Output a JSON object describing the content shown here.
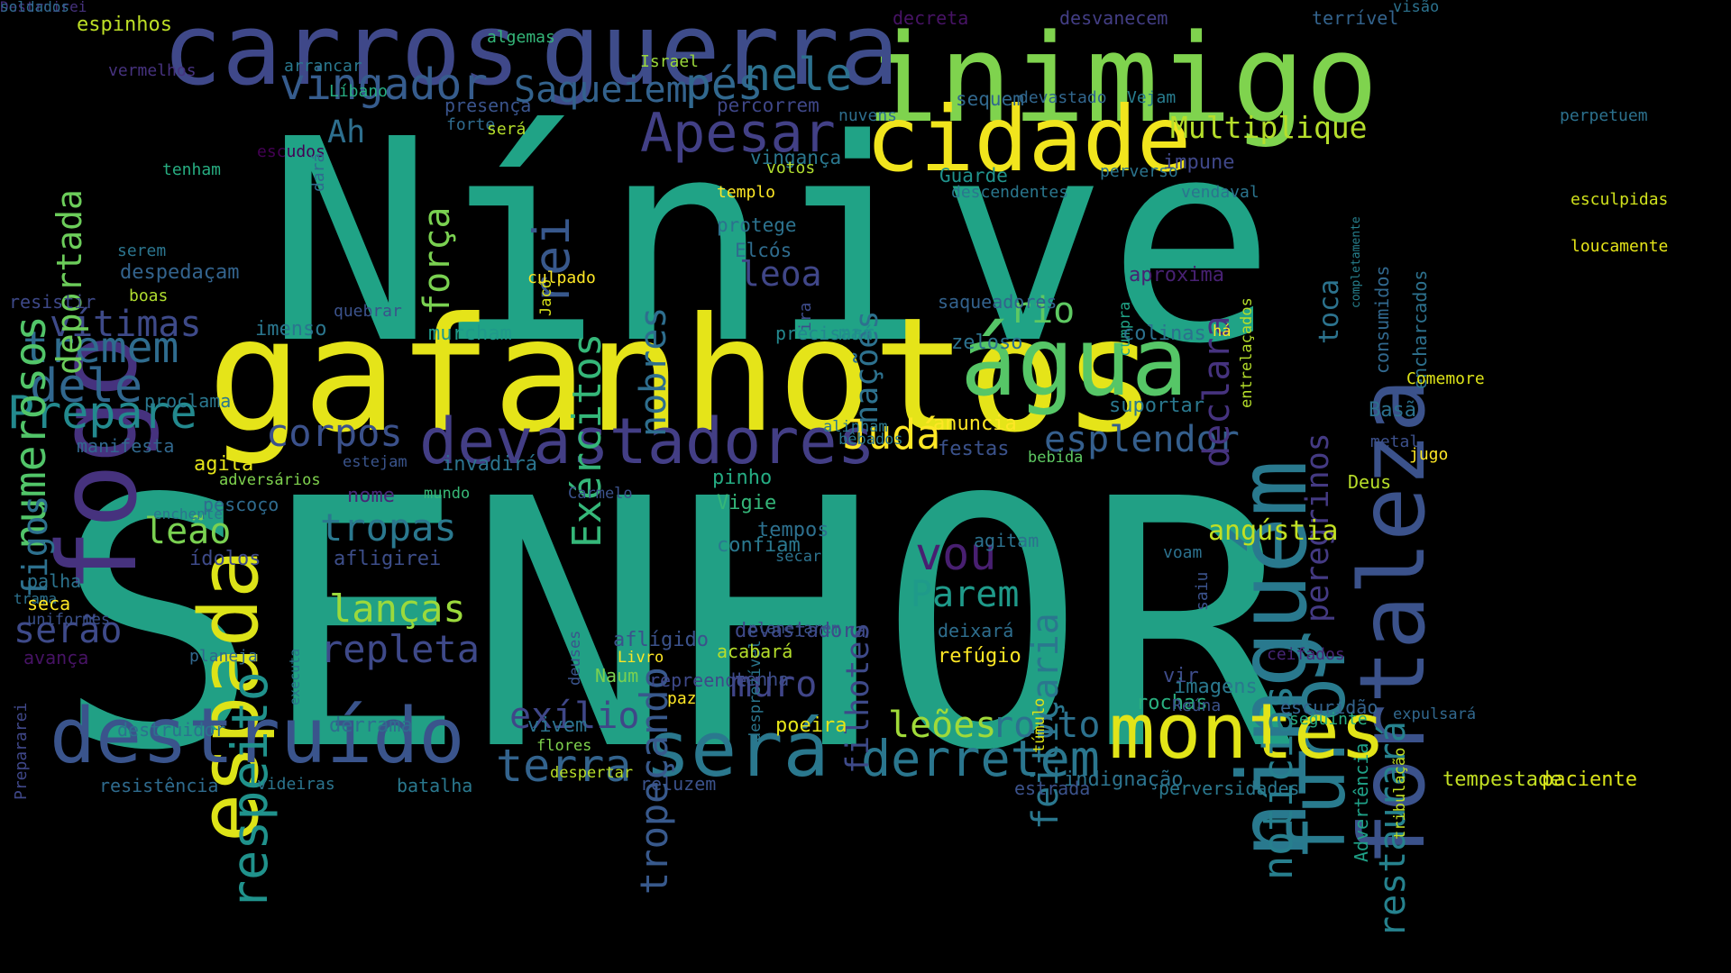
{
  "words": [
    {
      "text": "SENHOR",
      "color": "#21a085"
    },
    {
      "text": "Nínive",
      "color": "#20a386"
    },
    {
      "text": "gafanhotos",
      "color": "#e5e419"
    },
    {
      "text": "inimigo",
      "color": "#7fd34e"
    },
    {
      "text": "carros",
      "color": "#3f4889"
    },
    {
      "text": "guerra",
      "color": "#3e4c8a"
    },
    {
      "text": "fogo",
      "color": "#46327e"
    },
    {
      "text": "espada",
      "color": "#dde318"
    },
    {
      "text": "cidade",
      "color": "#f1e51d"
    },
    {
      "text": "água",
      "color": "#56c667"
    },
    {
      "text": "ninguém",
      "color": "#29798e"
    },
    {
      "text": "fortaleza",
      "color": "#3b528b"
    },
    {
      "text": "furor",
      "color": "#297b8e"
    },
    {
      "text": "montes",
      "color": "#e2e418"
    },
    {
      "text": "destruído",
      "color": "#3a548c"
    },
    {
      "text": "será",
      "color": "#2a788e"
    },
    {
      "text": "devastadores",
      "color": "#433e85"
    },
    {
      "text": "Apesar",
      "color": "#424086"
    },
    {
      "text": "vingador",
      "color": "#365c8d"
    },
    {
      "text": "Saqueiem",
      "color": "#33628d"
    },
    {
      "text": "pés",
      "color": "#31688e"
    },
    {
      "text": "nele",
      "color": "#2c718e"
    },
    {
      "text": "derretem",
      "color": "#2a768e"
    },
    {
      "text": "terra",
      "color": "#33638d"
    },
    {
      "text": "Prepare",
      "color": "#23898e"
    },
    {
      "text": "tremem",
      "color": "#2f6c8e"
    },
    {
      "text": "dele",
      "color": "#31678e"
    },
    {
      "text": "vítimas",
      "color": "#3e4a89"
    },
    {
      "text": "numerosos",
      "color": "#52c569"
    },
    {
      "text": "deportada",
      "color": "#6ccd5a"
    },
    {
      "text": "Exércitos",
      "color": "#35b779"
    },
    {
      "text": "rei",
      "color": "#38588c"
    },
    {
      "text": "força",
      "color": "#7ad151"
    },
    {
      "text": "Judá",
      "color": "#fde725"
    },
    {
      "text": "Multiplique",
      "color": "#b5de2b"
    },
    {
      "text": "notícias",
      "color": "#277f8e"
    },
    {
      "text": "restaurará",
      "color": "#26828e"
    },
    {
      "text": "esplendor",
      "color": "#355f8d"
    },
    {
      "text": "corpos",
      "color": "#3b518b"
    },
    {
      "text": "respeito",
      "color": "#20928c"
    },
    {
      "text": "tropas",
      "color": "#2a788e"
    },
    {
      "text": "lanças",
      "color": "#9bd93c"
    },
    {
      "text": "repleta",
      "color": "#3e4989"
    },
    {
      "text": "feitiçaria",
      "color": "#2a778e"
    },
    {
      "text": "filhotes",
      "color": "#3e4a89"
    },
    {
      "text": "vou",
      "color": "#481f71"
    },
    {
      "text": "Parem",
      "color": "#1f9a8a"
    },
    {
      "text": "tropeçando",
      "color": "#38598c"
    },
    {
      "text": "muro",
      "color": "#404588"
    },
    {
      "text": "exílio",
      "color": "#3f4788"
    },
    {
      "text": "leões",
      "color": "#a0da39"
    },
    {
      "text": "rosto",
      "color": "#2c718e"
    },
    {
      "text": "serão",
      "color": "#3e4a89"
    },
    {
      "text": "figos",
      "color": "#2d708e"
    },
    {
      "text": "leão",
      "color": "#7ad151"
    },
    {
      "text": "nações",
      "color": "#2d718e"
    },
    {
      "text": "nobres",
      "color": "#2e6e8e"
    },
    {
      "text": "rio",
      "color": "#5ec962"
    },
    {
      "text": "declara",
      "color": "#46337f"
    },
    {
      "text": "peregrinos",
      "color": "#443a83"
    },
    {
      "text": "toca",
      "color": "#2c738e"
    },
    {
      "text": "Ah",
      "color": "#2e6f8e"
    },
    {
      "text": "leoa",
      "color": "#404688"
    },
    {
      "text": "Deus",
      "color": "#b8de29"
    },
    {
      "text": "consumidos",
      "color": "#31688e"
    },
    {
      "text": "encharcados",
      "color": "#2d718e"
    },
    {
      "text": "completamente",
      "color": "#27808e"
    },
    {
      "text": "vingança",
      "color": "#2a778e"
    },
    {
      "text": "protege",
      "color": "#2c728e"
    },
    {
      "text": "Elcós",
      "color": "#2f6c8e"
    },
    {
      "text": "suportar",
      "color": "#2a788e"
    },
    {
      "text": "impune",
      "color": "#3f4788"
    },
    {
      "text": "escuridão",
      "color": "#33638d"
    },
    {
      "text": "tempestade",
      "color": "#c2df23"
    },
    {
      "text": "paciente",
      "color": "#dae319"
    },
    {
      "text": "indignação",
      "color": "#2c738e"
    },
    {
      "text": "rochas",
      "color": "#29af7f"
    },
    {
      "text": "vir",
      "color": "#3e4c8a"
    },
    {
      "text": "aproxima",
      "color": "#482173"
    },
    {
      "text": "Advertência",
      "color": "#1fa187"
    },
    {
      "text": "tribulação",
      "color": "#c2df23"
    },
    {
      "text": "loucamente",
      "color": "#e5e419"
    },
    {
      "text": "esculpidas",
      "color": "#d0e11c"
    },
    {
      "text": "Basã",
      "color": "#2c718e"
    },
    {
      "text": "metal",
      "color": "#3c508b"
    },
    {
      "text": "jugo",
      "color": "#fde725"
    },
    {
      "text": "Comemore",
      "color": "#dde318"
    },
    {
      "text": "espinhos",
      "color": "#bddf26"
    },
    {
      "text": "vermelhos",
      "color": "#46327e"
    },
    {
      "text": "arrancar",
      "color": "#2a788e"
    },
    {
      "text": "Israel",
      "color": "#9bd93c"
    },
    {
      "text": "Líbano",
      "color": "#26ad81"
    },
    {
      "text": "presença",
      "color": "#3a548c"
    },
    {
      "text": "forte",
      "color": "#2f6b8e"
    },
    {
      "text": "será",
      "color": "#b5de2b"
    },
    {
      "text": "algemas",
      "color": "#34b679"
    },
    {
      "text": "decreta",
      "color": "#471365"
    },
    {
      "text": "desvanecem",
      "color": "#433e85"
    },
    {
      "text": "terrível",
      "color": "#33638d"
    },
    {
      "text": "visão",
      "color": "#2c728e"
    },
    {
      "text": "percorrem",
      "color": "#3f4788"
    },
    {
      "text": "sequem",
      "color": "#31688e"
    },
    {
      "text": "nuvens",
      "color": "#2e6e8e"
    },
    {
      "text": "devastado",
      "color": "#31668e"
    },
    {
      "text": "Vejam",
      "color": "#287c8e"
    },
    {
      "text": "perpetuem",
      "color": "#2c718e"
    },
    {
      "text": "escudos",
      "color": "#440154"
    },
    {
      "text": "votos",
      "color": "#b0dd2f"
    },
    {
      "text": "templo",
      "color": "#fde725"
    },
    {
      "text": "Guarde",
      "color": "#20928c"
    },
    {
      "text": "perverso",
      "color": "#2b748e"
    },
    {
      "text": "vendaval",
      "color": "#2b748e"
    },
    {
      "text": "descendentes",
      "color": "#2a778e"
    },
    {
      "text": "tenham",
      "color": "#27ad81"
    },
    {
      "text": "dará",
      "color": "#2f6c8e"
    },
    {
      "text": "serem",
      "color": "#2b758e"
    },
    {
      "text": "despedaçam",
      "color": "#33638d"
    },
    {
      "text": "boas",
      "color": "#b0dd2f"
    },
    {
      "text": "resistir",
      "color": "#3e4989"
    },
    {
      "text": "quebrar",
      "color": "#3b528b"
    },
    {
      "text": "imenso",
      "color": "#2a768e"
    },
    {
      "text": "Jacó",
      "color": "#d8e219"
    },
    {
      "text": "culpado",
      "color": "#fde725"
    },
    {
      "text": "ira",
      "color": "#3e4c8a"
    },
    {
      "text": "cumpra",
      "color": "#20a386"
    },
    {
      "text": "entrelaçados",
      "color": "#b5de2b"
    },
    {
      "text": "saqueadores",
      "color": "#33628d"
    },
    {
      "text": "precisará",
      "color": "#23888e"
    },
    {
      "text": "mar",
      "color": "#21908d"
    },
    {
      "text": "zeloso",
      "color": "#2c718e"
    },
    {
      "text": "colinas",
      "color": "#2c718e"
    },
    {
      "text": "há",
      "color": "#fde725"
    },
    {
      "text": "murcham",
      "color": "#1f9a8a"
    },
    {
      "text": "proclama",
      "color": "#2a778e"
    },
    {
      "text": "manifesta",
      "color": "#31688e"
    },
    {
      "text": "agita",
      "color": "#e5e419"
    },
    {
      "text": "estejam",
      "color": "#3a548c"
    },
    {
      "text": "adversários",
      "color": "#7fd34e"
    },
    {
      "text": "invadirá",
      "color": "#2b748e"
    },
    {
      "text": "alinham",
      "color": "#2a788e"
    },
    {
      "text": "bêbados",
      "color": "#2a778e"
    },
    {
      "text": "anuncia",
      "color": "#fde725"
    },
    {
      "text": "festas",
      "color": "#3b528b"
    },
    {
      "text": "bebida",
      "color": "#5ec962"
    },
    {
      "text": "enchente",
      "color": "#2b748e"
    },
    {
      "text": "pescoço",
      "color": "#2f6b8e"
    },
    {
      "text": "nome",
      "color": "#482677"
    },
    {
      "text": "mundo",
      "color": "#38b977"
    },
    {
      "text": "Carmelo",
      "color": "#3b528b"
    },
    {
      "text": "pinho",
      "color": "#25ab82"
    },
    {
      "text": "Vigie",
      "color": "#34b679"
    },
    {
      "text": "tempos",
      "color": "#2d708e"
    },
    {
      "text": "confiam",
      "color": "#2a788e"
    },
    {
      "text": "secar",
      "color": "#2c728e"
    },
    {
      "text": "angústia",
      "color": "#c2df23"
    },
    {
      "text": "agitam",
      "color": "#2c718e"
    },
    {
      "text": "voam",
      "color": "#2c718e"
    },
    {
      "text": "saiu",
      "color": "#3b528b"
    },
    {
      "text": "ídolos",
      "color": "#3e4a89"
    },
    {
      "text": "afligirei",
      "color": "#3d4e8a"
    },
    {
      "text": "palha",
      "color": "#2c738e"
    },
    {
      "text": "trama",
      "color": "#2c718e"
    },
    {
      "text": "seca",
      "color": "#fde725"
    },
    {
      "text": "uniformes",
      "color": "#3b518b"
    },
    {
      "text": "executa",
      "color": "#2b758e"
    },
    {
      "text": "deuses",
      "color": "#3a548c"
    },
    {
      "text": "desprezível",
      "color": "#2a768e"
    },
    {
      "text": "devastadora",
      "color": "#3e4989"
    },
    {
      "text": "planejarem",
      "color": "#3b528b"
    },
    {
      "text": "acabará",
      "color": "#b5de2b"
    },
    {
      "text": "tenha",
      "color": "#3d4d8a"
    },
    {
      "text": "deixará",
      "color": "#2e6e8e"
    },
    {
      "text": "refúgio",
      "color": "#fde725"
    },
    {
      "text": "aflígido",
      "color": "#3b528b"
    },
    {
      "text": "Livro",
      "color": "#fde725"
    },
    {
      "text": "Naum",
      "color": "#7ad151"
    },
    {
      "text": "avança",
      "color": "#471365"
    },
    {
      "text": "planeja",
      "color": "#31688e"
    },
    {
      "text": "repreende",
      "color": "#3e4989"
    },
    {
      "text": "paz",
      "color": "#fde725"
    },
    {
      "text": "ceifados",
      "color": "#482677"
    },
    {
      "text": "imagens",
      "color": "#2a788e"
    },
    {
      "text": "Reúna",
      "color": "#3b528b"
    },
    {
      "text": "túmulo",
      "color": "#dde318"
    },
    {
      "text": "seguinte",
      "color": "#27ad81"
    },
    {
      "text": "expulsará",
      "color": "#31688e"
    },
    {
      "text": "Prepararei",
      "color": "#3f4788"
    },
    {
      "text": "destruidor",
      "color": "#2c728e"
    },
    {
      "text": "derrama",
      "color": "#2e6e8e"
    },
    {
      "text": "vivem",
      "color": "#2c728e"
    },
    {
      "text": "poeira",
      "color": "#e5e419"
    },
    {
      "text": "flores",
      "color": "#7fd34e"
    },
    {
      "text": "despertar",
      "color": "#b8de29"
    },
    {
      "text": "reluzem",
      "color": "#3b528b"
    },
    {
      "text": "estrada",
      "color": "#3b528b"
    },
    {
      "text": "perversidades",
      "color": "#2a788e"
    },
    {
      "text": "resistência",
      "color": "#2f6b8e"
    },
    {
      "text": "videiras",
      "color": "#2b748e"
    },
    {
      "text": "batalha",
      "color": "#2a788e"
    },
    {
      "text": "Destruirei",
      "color": "#46327e"
    },
    {
      "text": "soldados",
      "color": "#2f6b8e"
    }
  ]
}
